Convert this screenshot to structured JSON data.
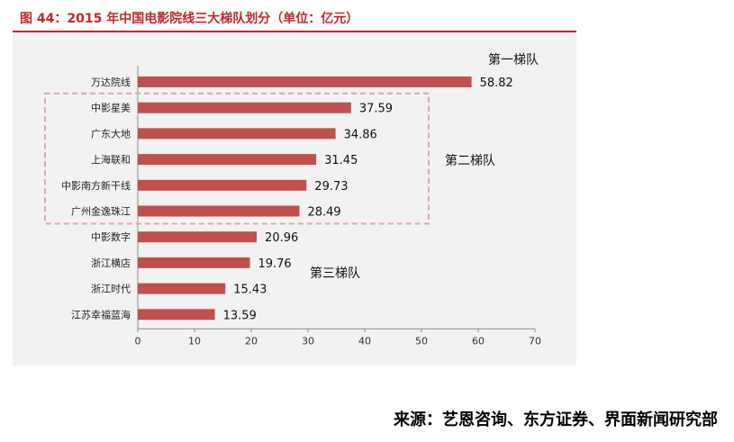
{
  "chart_data": {
    "type": "bar",
    "orientation": "horizontal",
    "title": "图 44：2015 年中国电影院线三大梯队划分（单位：亿元）",
    "categories": [
      "万达院线",
      "中影星美",
      "广东大地",
      "上海联和",
      "中影南方新干线",
      "广州金逸珠江",
      "中影数字",
      "浙江横店",
      "浙江时代",
      "江苏幸福蓝海"
    ],
    "values": [
      58.82,
      37.59,
      34.86,
      31.45,
      29.73,
      28.49,
      20.96,
      19.76,
      15.43,
      13.59
    ],
    "value_labels": [
      "58.82",
      "37.59",
      "34.86",
      "31.45",
      "29.73",
      "28.49",
      "20.96",
      "19.76",
      "15.43",
      "13.59"
    ],
    "xlim": [
      0,
      70
    ],
    "xticks": [
      "0",
      "10",
      "20",
      "30",
      "40",
      "50",
      "60",
      "70"
    ],
    "bar_color": "#c0504d",
    "grid": false,
    "annotations": [
      {
        "text": "第一梯队",
        "near_category": "万达院线"
      },
      {
        "text": "第二梯队",
        "group": [
          "中影星美",
          "广东大地",
          "上海联和",
          "中影南方新干线",
          "广州金逸珠江"
        ],
        "boxed": true
      },
      {
        "text": "第三梯队",
        "near_category": "浙江横店"
      }
    ]
  },
  "source": "来源：艺恩咨询、东方证券、界面新闻研究部"
}
